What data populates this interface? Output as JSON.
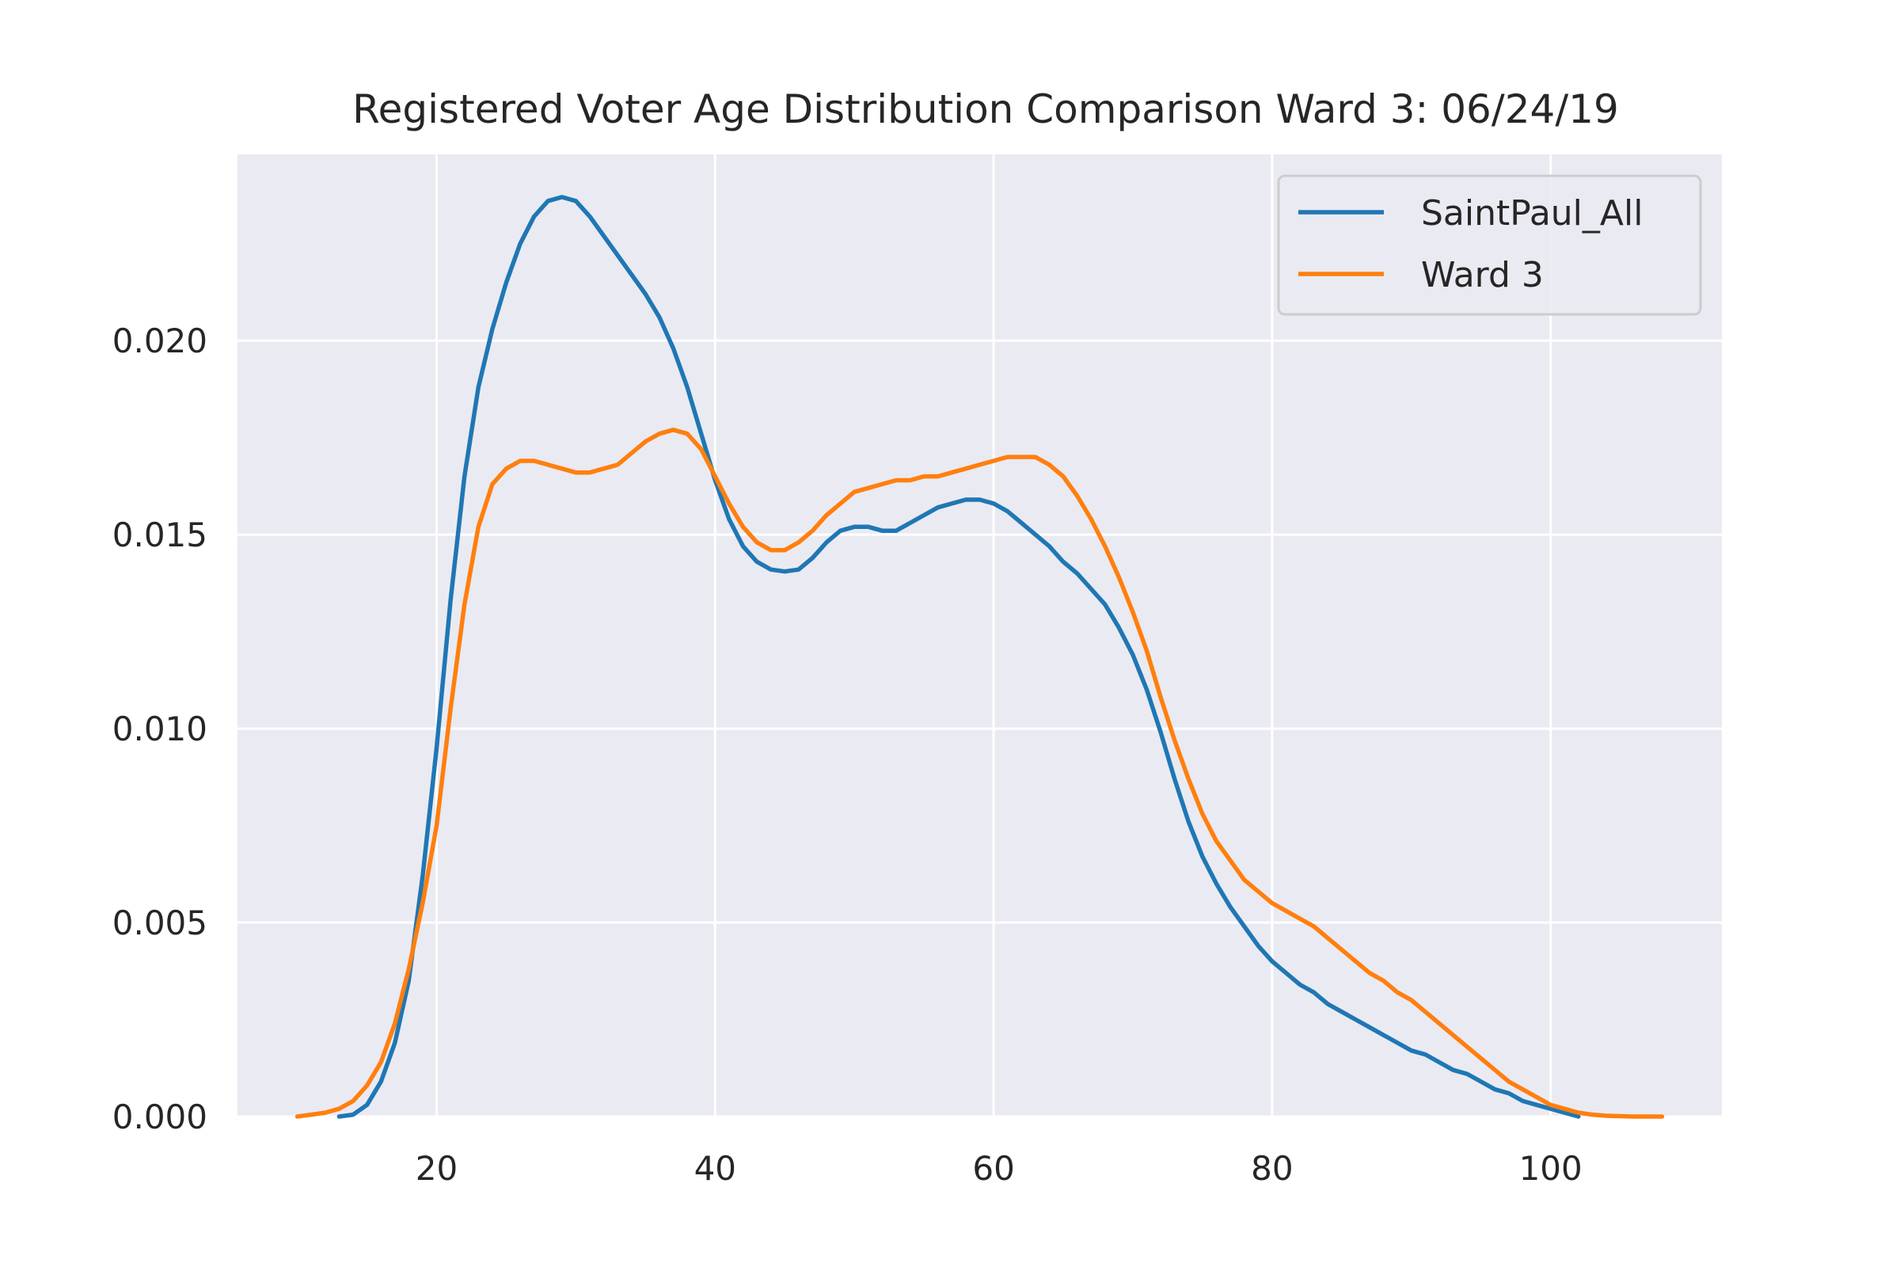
{
  "chart_data": {
    "type": "line",
    "title": "Registered Voter Age Distribution Comparison Ward 3: 06/24/19",
    "xlabel": "",
    "ylabel": "",
    "xlim": [
      5.7,
      112.3
    ],
    "ylim": [
      0,
      0.0248
    ],
    "x_ticks": [
      20,
      40,
      60,
      80,
      100
    ],
    "x_tick_labels": [
      "20",
      "40",
      "60",
      "80",
      "100"
    ],
    "y_ticks": [
      0,
      0.005,
      0.01,
      0.015,
      0.02
    ],
    "y_tick_labels": [
      "0.000",
      "0.005",
      "0.010",
      "0.015",
      "0.020"
    ],
    "grid": true,
    "legend_position": "top-right",
    "series": [
      {
        "name": "SaintPaul_All",
        "color": "#1f77b4",
        "points": [
          [
            13,
            0.0
          ],
          [
            14,
            5e-05
          ],
          [
            15,
            0.0003
          ],
          [
            16,
            0.0009
          ],
          [
            17,
            0.0019
          ],
          [
            18,
            0.0035
          ],
          [
            19,
            0.0062
          ],
          [
            20,
            0.0095
          ],
          [
            21,
            0.0133
          ],
          [
            22,
            0.0165
          ],
          [
            23,
            0.0188
          ],
          [
            24,
            0.0203
          ],
          [
            25,
            0.0215
          ],
          [
            26,
            0.0225
          ],
          [
            27,
            0.0232
          ],
          [
            28,
            0.0236
          ],
          [
            29,
            0.0237
          ],
          [
            30,
            0.0236
          ],
          [
            31,
            0.0232
          ],
          [
            32,
            0.0227
          ],
          [
            33,
            0.0222
          ],
          [
            34,
            0.0217
          ],
          [
            35,
            0.0212
          ],
          [
            36,
            0.0206
          ],
          [
            37,
            0.0198
          ],
          [
            38,
            0.0188
          ],
          [
            39,
            0.0176
          ],
          [
            40,
            0.0164
          ],
          [
            41,
            0.0154
          ],
          [
            42,
            0.0147
          ],
          [
            43,
            0.0143
          ],
          [
            44,
            0.0141
          ],
          [
            45,
            0.01405
          ],
          [
            46,
            0.0141
          ],
          [
            47,
            0.0144
          ],
          [
            48,
            0.0148
          ],
          [
            49,
            0.0151
          ],
          [
            50,
            0.0152
          ],
          [
            51,
            0.0152
          ],
          [
            52,
            0.0151
          ],
          [
            53,
            0.0151
          ],
          [
            54,
            0.0153
          ],
          [
            55,
            0.0155
          ],
          [
            56,
            0.0157
          ],
          [
            57,
            0.0158
          ],
          [
            58,
            0.0159
          ],
          [
            59,
            0.0159
          ],
          [
            60,
            0.0158
          ],
          [
            61,
            0.0156
          ],
          [
            62,
            0.0153
          ],
          [
            63,
            0.015
          ],
          [
            64,
            0.0147
          ],
          [
            65,
            0.0143
          ],
          [
            66,
            0.014
          ],
          [
            67,
            0.0136
          ],
          [
            68,
            0.0132
          ],
          [
            69,
            0.0126
          ],
          [
            70,
            0.0119
          ],
          [
            71,
            0.011
          ],
          [
            72,
            0.0099
          ],
          [
            73,
            0.0087
          ],
          [
            74,
            0.0076
          ],
          [
            75,
            0.0067
          ],
          [
            76,
            0.006
          ],
          [
            77,
            0.0054
          ],
          [
            78,
            0.0049
          ],
          [
            79,
            0.0044
          ],
          [
            80,
            0.004
          ],
          [
            81,
            0.0037
          ],
          [
            82,
            0.0034
          ],
          [
            83,
            0.0032
          ],
          [
            84,
            0.0029
          ],
          [
            85,
            0.0027
          ],
          [
            86,
            0.0025
          ],
          [
            87,
            0.0023
          ],
          [
            88,
            0.0021
          ],
          [
            89,
            0.0019
          ],
          [
            90,
            0.0017
          ],
          [
            91,
            0.0016
          ],
          [
            92,
            0.0014
          ],
          [
            93,
            0.0012
          ],
          [
            94,
            0.0011
          ],
          [
            95,
            0.0009
          ],
          [
            96,
            0.0007
          ],
          [
            97,
            0.0006
          ],
          [
            98,
            0.0004
          ],
          [
            99,
            0.0003
          ],
          [
            100,
            0.0002
          ],
          [
            101,
            0.0001
          ],
          [
            102,
            0.0
          ]
        ]
      },
      {
        "name": "Ward 3",
        "color": "#ff7f0e",
        "points": [
          [
            10,
            0.0
          ],
          [
            11,
            5e-05
          ],
          [
            12,
            0.0001
          ],
          [
            13,
            0.0002
          ],
          [
            14,
            0.0004
          ],
          [
            15,
            0.0008
          ],
          [
            16,
            0.0014
          ],
          [
            17,
            0.0024
          ],
          [
            18,
            0.0038
          ],
          [
            19,
            0.0055
          ],
          [
            20,
            0.0075
          ],
          [
            21,
            0.0105
          ],
          [
            22,
            0.0132
          ],
          [
            23,
            0.0152
          ],
          [
            24,
            0.0163
          ],
          [
            25,
            0.0167
          ],
          [
            26,
            0.0169
          ],
          [
            27,
            0.0169
          ],
          [
            28,
            0.0168
          ],
          [
            29,
            0.0167
          ],
          [
            30,
            0.0166
          ],
          [
            31,
            0.0166
          ],
          [
            32,
            0.0167
          ],
          [
            33,
            0.0168
          ],
          [
            34,
            0.0171
          ],
          [
            35,
            0.0174
          ],
          [
            36,
            0.0176
          ],
          [
            37,
            0.0177
          ],
          [
            38,
            0.0176
          ],
          [
            39,
            0.0172
          ],
          [
            40,
            0.0165
          ],
          [
            41,
            0.0158
          ],
          [
            42,
            0.0152
          ],
          [
            43,
            0.0148
          ],
          [
            44,
            0.0146
          ],
          [
            45,
            0.0146
          ],
          [
            46,
            0.0148
          ],
          [
            47,
            0.0151
          ],
          [
            48,
            0.0155
          ],
          [
            49,
            0.0158
          ],
          [
            50,
            0.0161
          ],
          [
            51,
            0.0162
          ],
          [
            52,
            0.0163
          ],
          [
            53,
            0.0164
          ],
          [
            54,
            0.0164
          ],
          [
            55,
            0.0165
          ],
          [
            56,
            0.0165
          ],
          [
            57,
            0.0166
          ],
          [
            58,
            0.0167
          ],
          [
            59,
            0.0168
          ],
          [
            60,
            0.0169
          ],
          [
            61,
            0.017
          ],
          [
            62,
            0.017
          ],
          [
            63,
            0.017
          ],
          [
            64,
            0.0168
          ],
          [
            65,
            0.0165
          ],
          [
            66,
            0.016
          ],
          [
            67,
            0.0154
          ],
          [
            68,
            0.0147
          ],
          [
            69,
            0.0139
          ],
          [
            70,
            0.013
          ],
          [
            71,
            0.012
          ],
          [
            72,
            0.0108
          ],
          [
            73,
            0.0097
          ],
          [
            74,
            0.0087
          ],
          [
            75,
            0.0078
          ],
          [
            76,
            0.0071
          ],
          [
            77,
            0.0066
          ],
          [
            78,
            0.0061
          ],
          [
            79,
            0.0058
          ],
          [
            80,
            0.0055
          ],
          [
            81,
            0.0053
          ],
          [
            82,
            0.0051
          ],
          [
            83,
            0.0049
          ],
          [
            84,
            0.0046
          ],
          [
            85,
            0.0043
          ],
          [
            86,
            0.004
          ],
          [
            87,
            0.0037
          ],
          [
            88,
            0.0035
          ],
          [
            89,
            0.0032
          ],
          [
            90,
            0.003
          ],
          [
            91,
            0.0027
          ],
          [
            92,
            0.0024
          ],
          [
            93,
            0.0021
          ],
          [
            94,
            0.0018
          ],
          [
            95,
            0.0015
          ],
          [
            96,
            0.0012
          ],
          [
            97,
            0.0009
          ],
          [
            98,
            0.0007
          ],
          [
            99,
            0.0005
          ],
          [
            100,
            0.0003
          ],
          [
            101,
            0.0002
          ],
          [
            102,
            0.0001
          ],
          [
            103,
            5e-05
          ],
          [
            104,
            2e-05
          ],
          [
            106,
            0.0
          ],
          [
            108,
            0.0
          ]
        ]
      }
    ]
  }
}
